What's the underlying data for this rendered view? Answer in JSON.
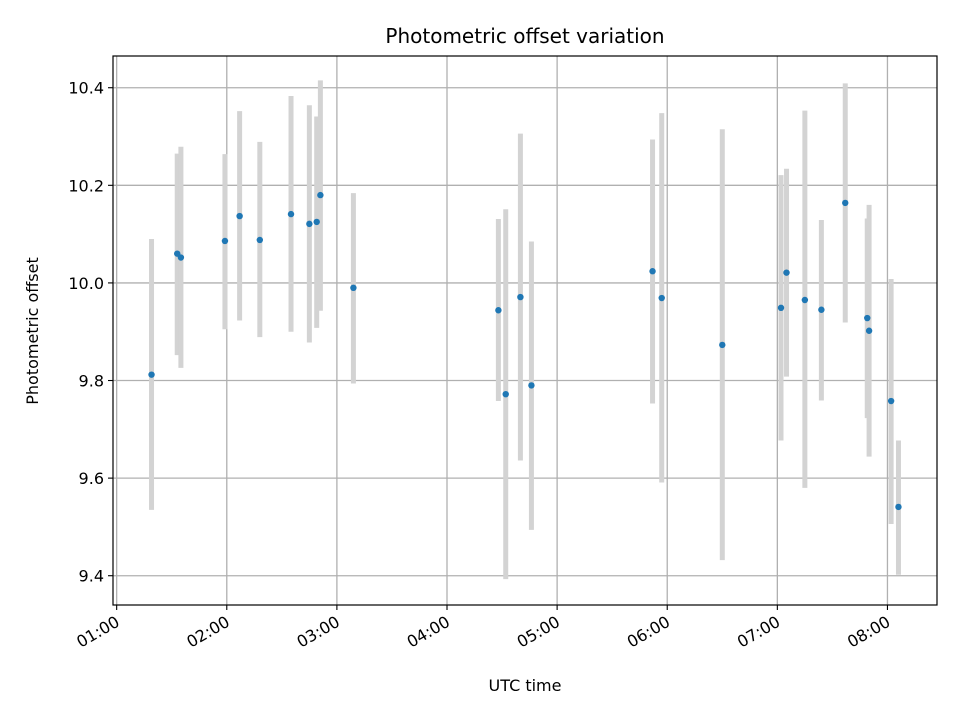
{
  "chart_data": {
    "type": "scatter",
    "title": "Photometric offset variation",
    "xlabel": "UTC time",
    "ylabel": "Photometric offset",
    "x_unit": "time of day (HH:MM, UTC)",
    "xlim": [
      "00:58",
      "08:27"
    ],
    "ylim": [
      9.34,
      10.465
    ],
    "x_ticks": [
      "01:00",
      "02:00",
      "03:00",
      "04:00",
      "05:00",
      "06:00",
      "07:00",
      "08:00"
    ],
    "y_ticks": [
      9.4,
      9.6,
      9.8,
      10.0,
      10.2,
      10.4
    ],
    "y_tick_labels": [
      "9.4",
      "9.6",
      "9.8",
      "10.0",
      "10.2",
      "10.4"
    ],
    "grid": true,
    "legend": "none",
    "colors": {
      "points": "#1f77b4",
      "error_bars": "#d3d3d3",
      "grid": "#b0b0b0"
    },
    "series": [
      {
        "points": [
          {
            "x": "01:19",
            "y": 9.812,
            "err_low": 9.535,
            "err_high": 10.09
          },
          {
            "x": "01:33",
            "y": 10.06,
            "err_low": 9.852,
            "err_high": 10.265
          },
          {
            "x": "01:35",
            "y": 10.052,
            "err_low": 9.826,
            "err_high": 10.279
          },
          {
            "x": "01:59",
            "y": 10.086,
            "err_low": 9.905,
            "err_high": 10.264
          },
          {
            "x": "02:07",
            "y": 10.137,
            "err_low": 9.923,
            "err_high": 10.352
          },
          {
            "x": "02:18",
            "y": 10.088,
            "err_low": 9.889,
            "err_high": 10.289
          },
          {
            "x": "02:35",
            "y": 10.141,
            "err_low": 9.9,
            "err_high": 10.383
          },
          {
            "x": "02:45",
            "y": 10.121,
            "err_low": 9.878,
            "err_high": 10.364
          },
          {
            "x": "02:49",
            "y": 10.125,
            "err_low": 9.908,
            "err_high": 10.341
          },
          {
            "x": "02:51",
            "y": 10.18,
            "err_low": 9.943,
            "err_high": 10.415
          },
          {
            "x": "03:09",
            "y": 9.99,
            "err_low": 9.794,
            "err_high": 10.184
          },
          {
            "x": "04:28",
            "y": 9.944,
            "err_low": 9.758,
            "err_high": 10.131
          },
          {
            "x": "04:32",
            "y": 9.772,
            "err_low": 9.393,
            "err_high": 10.151
          },
          {
            "x": "04:40",
            "y": 9.971,
            "err_low": 9.636,
            "err_high": 10.306
          },
          {
            "x": "04:46",
            "y": 9.79,
            "err_low": 9.494,
            "err_high": 10.085
          },
          {
            "x": "05:52",
            "y": 10.024,
            "err_low": 9.753,
            "err_high": 10.294
          },
          {
            "x": "05:57",
            "y": 9.969,
            "err_low": 9.591,
            "err_high": 10.348
          },
          {
            "x": "06:30",
            "y": 9.873,
            "err_low": 9.432,
            "err_high": 10.315
          },
          {
            "x": "07:02",
            "y": 9.949,
            "err_low": 9.677,
            "err_high": 10.221
          },
          {
            "x": "07:05",
            "y": 10.021,
            "err_low": 9.808,
            "err_high": 10.234
          },
          {
            "x": "07:15",
            "y": 9.965,
            "err_low": 9.58,
            "err_high": 10.353
          },
          {
            "x": "07:24",
            "y": 9.945,
            "err_low": 9.759,
            "err_high": 10.129
          },
          {
            "x": "07:37",
            "y": 10.164,
            "err_low": 9.919,
            "err_high": 10.409
          },
          {
            "x": "07:49",
            "y": 9.928,
            "err_low": 9.723,
            "err_high": 10.132
          },
          {
            "x": "07:50",
            "y": 9.902,
            "err_low": 9.644,
            "err_high": 10.16
          },
          {
            "x": "08:02",
            "y": 9.758,
            "err_low": 9.506,
            "err_high": 10.008
          },
          {
            "x": "08:06",
            "y": 9.541,
            "err_low": 9.402,
            "err_high": 9.677
          }
        ]
      }
    ]
  }
}
